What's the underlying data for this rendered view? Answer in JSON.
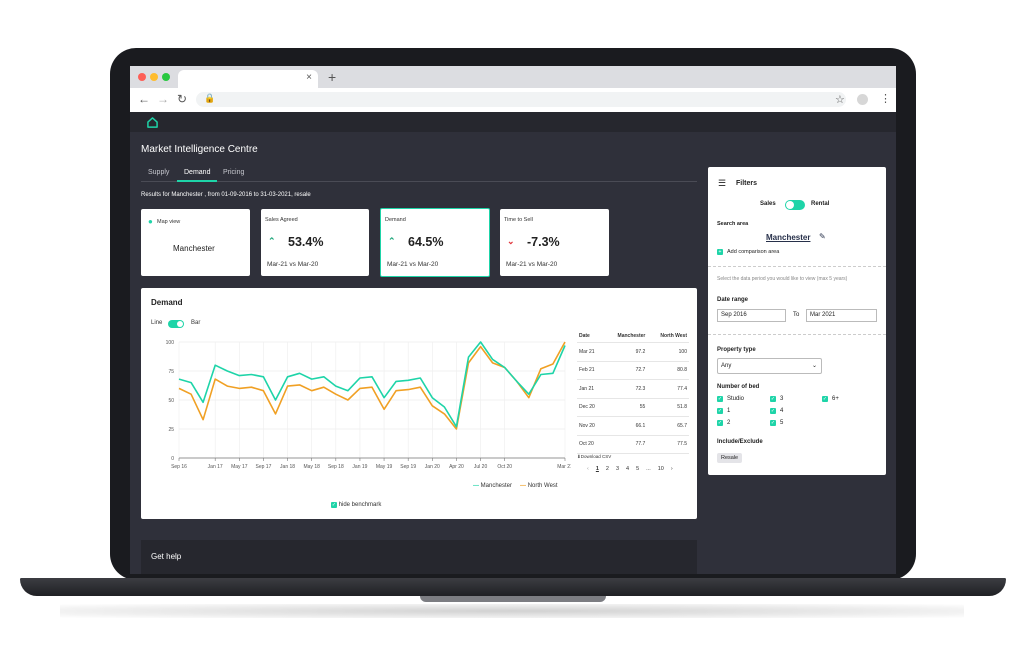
{
  "browser": {
    "tab_title": "",
    "tab_close": "×",
    "new_tab": "+",
    "back": "←",
    "forward": "→",
    "reload": "↻",
    "url": ""
  },
  "app": {
    "title": "Market Intelligence Centre",
    "tabs": [
      {
        "label": "Supply"
      },
      {
        "label": "Demand",
        "active": true
      },
      {
        "label": "Pricing"
      }
    ],
    "results_text": "Results for Manchester , from 01-09-2016 to 31-03-2021, resale",
    "accent": "#1ed4a8",
    "up_color": "#1ea67a",
    "down_color": "#e0353b"
  },
  "cards": {
    "map": {
      "title": "Map view",
      "value": "Manchester"
    },
    "sales": {
      "title": "Sales Agreed",
      "value": "53.4%",
      "compare": "Mar-21 vs Mar-20",
      "arrow": "up-double-arrow"
    },
    "demand": {
      "title": "Demand",
      "value": "64.5%",
      "compare": "Mar-21 vs Mar-20",
      "arrow": "up-double-arrow"
    },
    "tts": {
      "title": "Time to Sell",
      "value": "-7.3%",
      "compare": "Mar-21 vs Mar-20",
      "arrow": "down-double-arrow"
    }
  },
  "chart_panel": {
    "title": "Demand",
    "toggle_left": "Line",
    "toggle_right": "Bar",
    "hide_benchmark": "hide benchmark",
    "download": "Download CSV"
  },
  "table": {
    "headers": [
      "Date",
      "Manchester",
      "North West"
    ],
    "rows": [
      [
        "Mar 21",
        "97.2",
        "100"
      ],
      [
        "Feb 21",
        "72.7",
        "80.8"
      ],
      [
        "Jan 21",
        "72.3",
        "77.4"
      ],
      [
        "Dec 20",
        "55",
        "51.8"
      ],
      [
        "Nov 20",
        "66.1",
        "65.7"
      ],
      [
        "Oct 20",
        "77.7",
        "77.5"
      ]
    ],
    "pagination": [
      "1",
      "2",
      "3",
      "4",
      "5",
      "...",
      "10"
    ],
    "prev": "‹",
    "next": "›"
  },
  "chart_data": {
    "type": "line",
    "xlabel": "",
    "ylabel": "",
    "ylim": [
      0,
      100
    ],
    "yticks": [
      0,
      25,
      50,
      75,
      100
    ],
    "grid": true,
    "legend": "bottom-right",
    "x": [
      "Sep 16",
      "Nov 16",
      "Dec 16",
      "Jan 17",
      "Mar 17",
      "May 17",
      "Jul 17",
      "Sep 17",
      "Nov 17",
      "Jan 18",
      "Mar 18",
      "May 18",
      "Jul 18",
      "Sep 18",
      "Nov 18",
      "Jan 19",
      "Mar 19",
      "May 19",
      "Jul 19",
      "Sep 19",
      "Nov 19",
      "Jan 20",
      "Feb 20",
      "Apr 20",
      "Jun 20",
      "Jul 20",
      "Aug 20",
      "Oct 20",
      "Nov 20",
      "Dec 20",
      "Jan 21",
      "Feb 21",
      "Mar 21"
    ],
    "xticks": [
      "Sep 16",
      "Jan 17",
      "May 17",
      "Sep 17",
      "Jan 18",
      "May 18",
      "Sep 18",
      "Jan 19",
      "May 19",
      "Sep 19",
      "Jan 20",
      "Apr 20",
      "Jul 20",
      "Oct 20",
      "Mar 21"
    ],
    "series": [
      {
        "name": "Manchester",
        "color": "#1ed4a8",
        "values": [
          68,
          65,
          48,
          80,
          75,
          71,
          72,
          70,
          50,
          70,
          73,
          68,
          70,
          62,
          58,
          69,
          70,
          52,
          66,
          67,
          69,
          52,
          44,
          27,
          87,
          100,
          85,
          78,
          66,
          55,
          72,
          73,
          97
        ]
      },
      {
        "name": "North West",
        "color": "#f0a024",
        "values": [
          60,
          55,
          33,
          68,
          62,
          60,
          61,
          58,
          38,
          62,
          63,
          58,
          61,
          55,
          50,
          60,
          61,
          42,
          58,
          59,
          61,
          45,
          38,
          25,
          82,
          96,
          82,
          78,
          66,
          52,
          77,
          81,
          100
        ]
      }
    ]
  },
  "filters": {
    "title": "Filters",
    "sales": "Sales",
    "rental": "Rental",
    "search_area_label": "Search area",
    "search_area_value": "Manchester",
    "add_comparison": "Add comparison area",
    "period_hint": "Select the data period you would like to view (max 5 years)",
    "date_range_label": "Date range",
    "date_from": "Sep 2016",
    "to_label": "To",
    "date_to": "Mar 2021",
    "property_type_label": "Property type",
    "property_type_value": "Any",
    "beds_label": "Number of bed",
    "beds": [
      "Studio",
      "1",
      "2",
      "3",
      "4",
      "5",
      "6+"
    ],
    "include_label": "Include/Exclude",
    "resale": "Resale"
  },
  "help": {
    "title": "Get help"
  }
}
